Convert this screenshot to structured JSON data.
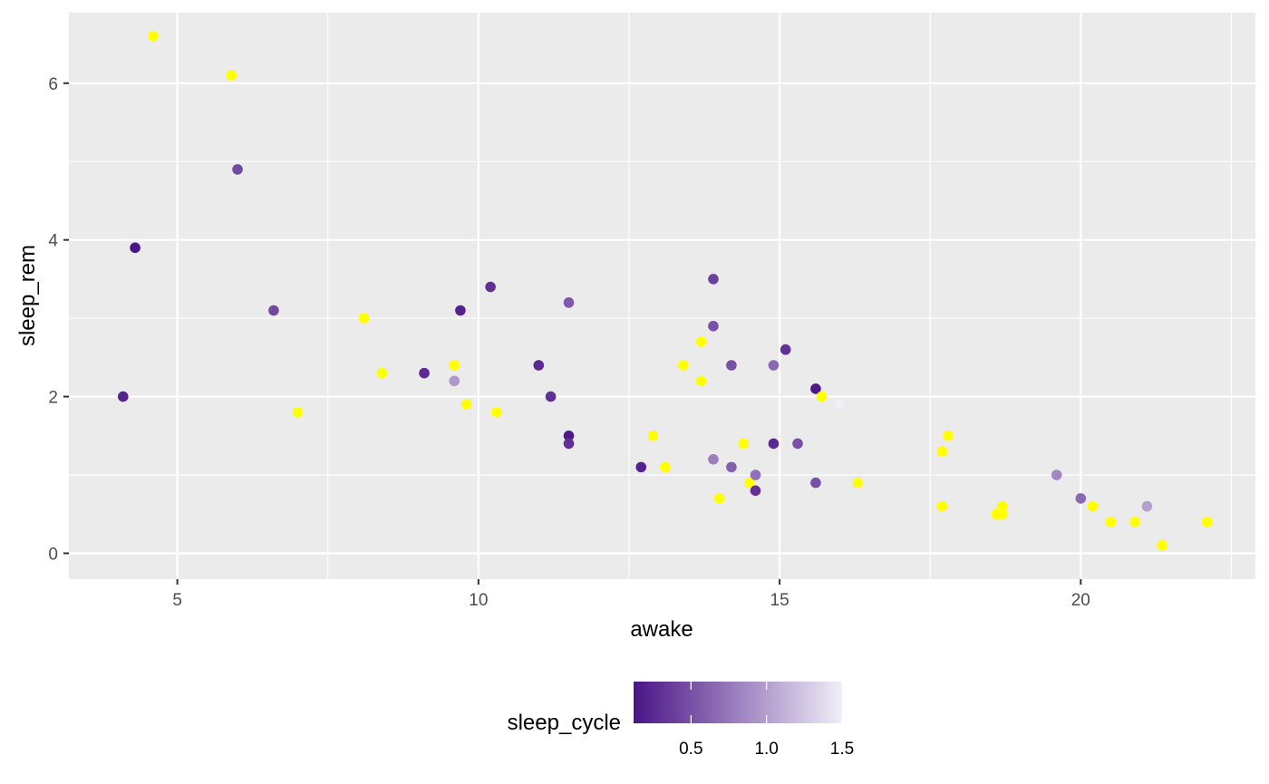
{
  "chart_data": {
    "type": "scatter",
    "xlabel": "awake",
    "ylabel": "sleep_rem",
    "xlim": [
      3.2,
      22.9
    ],
    "ylim": [
      -0.33,
      6.9
    ],
    "xticks": [
      5,
      10,
      15,
      20
    ],
    "xtick_labels": [
      "5",
      "10",
      "15",
      "20"
    ],
    "yticks": [
      0,
      2,
      4,
      6
    ],
    "ytick_labels": [
      "0",
      "2",
      "4",
      "6"
    ],
    "grid": true,
    "color_scale": {
      "variable": "sleep_cycle",
      "range": [
        0.12,
        1.5
      ],
      "ticks": [
        0.5,
        1.0,
        1.5
      ],
      "tick_labels": [
        "0.5",
        "1.0",
        "1.5"
      ],
      "colors": [
        "#4a1486",
        "#f0eef8"
      ],
      "na_color": "#ffff00"
    },
    "legend_position": "bottom",
    "points": [
      {
        "x": 4.6,
        "y": 6.6,
        "c": null
      },
      {
        "x": 5.9,
        "y": 6.1,
        "c": null
      },
      {
        "x": 6.0,
        "y": 4.9,
        "c": 0.45
      },
      {
        "x": 4.3,
        "y": 3.9,
        "c": 0.13
      },
      {
        "x": 4.1,
        "y": 2.0,
        "c": 0.2
      },
      {
        "x": 6.6,
        "y": 3.1,
        "c": 0.45
      },
      {
        "x": 8.1,
        "y": 3.0,
        "c": null
      },
      {
        "x": 8.4,
        "y": 2.3,
        "c": null
      },
      {
        "x": 7.0,
        "y": 1.8,
        "c": null
      },
      {
        "x": 9.1,
        "y": 2.3,
        "c": 0.25
      },
      {
        "x": 9.6,
        "y": 2.4,
        "c": null
      },
      {
        "x": 9.6,
        "y": 2.2,
        "c": 0.95
      },
      {
        "x": 9.8,
        "y": 1.9,
        "c": null
      },
      {
        "x": 9.7,
        "y": 3.1,
        "c": 0.2
      },
      {
        "x": 10.2,
        "y": 3.4,
        "c": 0.3
      },
      {
        "x": 10.3,
        "y": 1.8,
        "c": null
      },
      {
        "x": 11.0,
        "y": 2.4,
        "c": 0.25
      },
      {
        "x": 11.2,
        "y": 2.0,
        "c": 0.3
      },
      {
        "x": 11.5,
        "y": 3.2,
        "c": 0.55
      },
      {
        "x": 11.5,
        "y": 1.5,
        "c": 0.15
      },
      {
        "x": 11.5,
        "y": 1.4,
        "c": 0.3
      },
      {
        "x": 12.7,
        "y": 1.1,
        "c": 0.2
      },
      {
        "x": 12.9,
        "y": 1.5,
        "c": null
      },
      {
        "x": 13.1,
        "y": 1.1,
        "c": null
      },
      {
        "x": 13.4,
        "y": 2.4,
        "c": null
      },
      {
        "x": 13.7,
        "y": 2.7,
        "c": null
      },
      {
        "x": 13.7,
        "y": 2.2,
        "c": null
      },
      {
        "x": 13.9,
        "y": 3.5,
        "c": 0.4
      },
      {
        "x": 13.9,
        "y": 2.9,
        "c": 0.5
      },
      {
        "x": 13.9,
        "y": 1.2,
        "c": 0.8
      },
      {
        "x": 14.0,
        "y": 0.7,
        "c": null
      },
      {
        "x": 14.2,
        "y": 2.4,
        "c": 0.5
      },
      {
        "x": 14.2,
        "y": 1.1,
        "c": 0.6
      },
      {
        "x": 14.4,
        "y": 1.4,
        "c": null
      },
      {
        "x": 14.5,
        "y": 0.9,
        "c": null
      },
      {
        "x": 14.6,
        "y": 1.0,
        "c": 0.7
      },
      {
        "x": 14.6,
        "y": 0.8,
        "c": 0.3
      },
      {
        "x": 14.9,
        "y": 2.4,
        "c": 0.65
      },
      {
        "x": 14.9,
        "y": 1.4,
        "c": 0.25
      },
      {
        "x": 15.1,
        "y": 2.6,
        "c": 0.3
      },
      {
        "x": 15.3,
        "y": 1.4,
        "c": 0.5
      },
      {
        "x": 15.6,
        "y": 2.1,
        "c": 0.15
      },
      {
        "x": 15.6,
        "y": 0.9,
        "c": 0.5
      },
      {
        "x": 15.7,
        "y": 2.0,
        "c": null
      },
      {
        "x": 16.0,
        "y": 1.9,
        "c": 1.5
      },
      {
        "x": 16.3,
        "y": 0.9,
        "c": null
      },
      {
        "x": 17.7,
        "y": 1.3,
        "c": null
      },
      {
        "x": 17.8,
        "y": 1.5,
        "c": null
      },
      {
        "x": 17.7,
        "y": 0.6,
        "c": null
      },
      {
        "x": 18.6,
        "y": 0.5,
        "c": null
      },
      {
        "x": 18.7,
        "y": 0.5,
        "c": null
      },
      {
        "x": 18.7,
        "y": 0.6,
        "c": null
      },
      {
        "x": 19.6,
        "y": 1.0,
        "c": 0.85
      },
      {
        "x": 20.0,
        "y": 0.7,
        "c": 0.65
      },
      {
        "x": 20.2,
        "y": 0.6,
        "c": null
      },
      {
        "x": 20.5,
        "y": 0.4,
        "c": null
      },
      {
        "x": 20.9,
        "y": 0.4,
        "c": null
      },
      {
        "x": 21.1,
        "y": 0.6,
        "c": 1.0
      },
      {
        "x": 21.35,
        "y": 0.1,
        "c": null
      },
      {
        "x": 22.1,
        "y": 0.4,
        "c": null
      }
    ]
  }
}
